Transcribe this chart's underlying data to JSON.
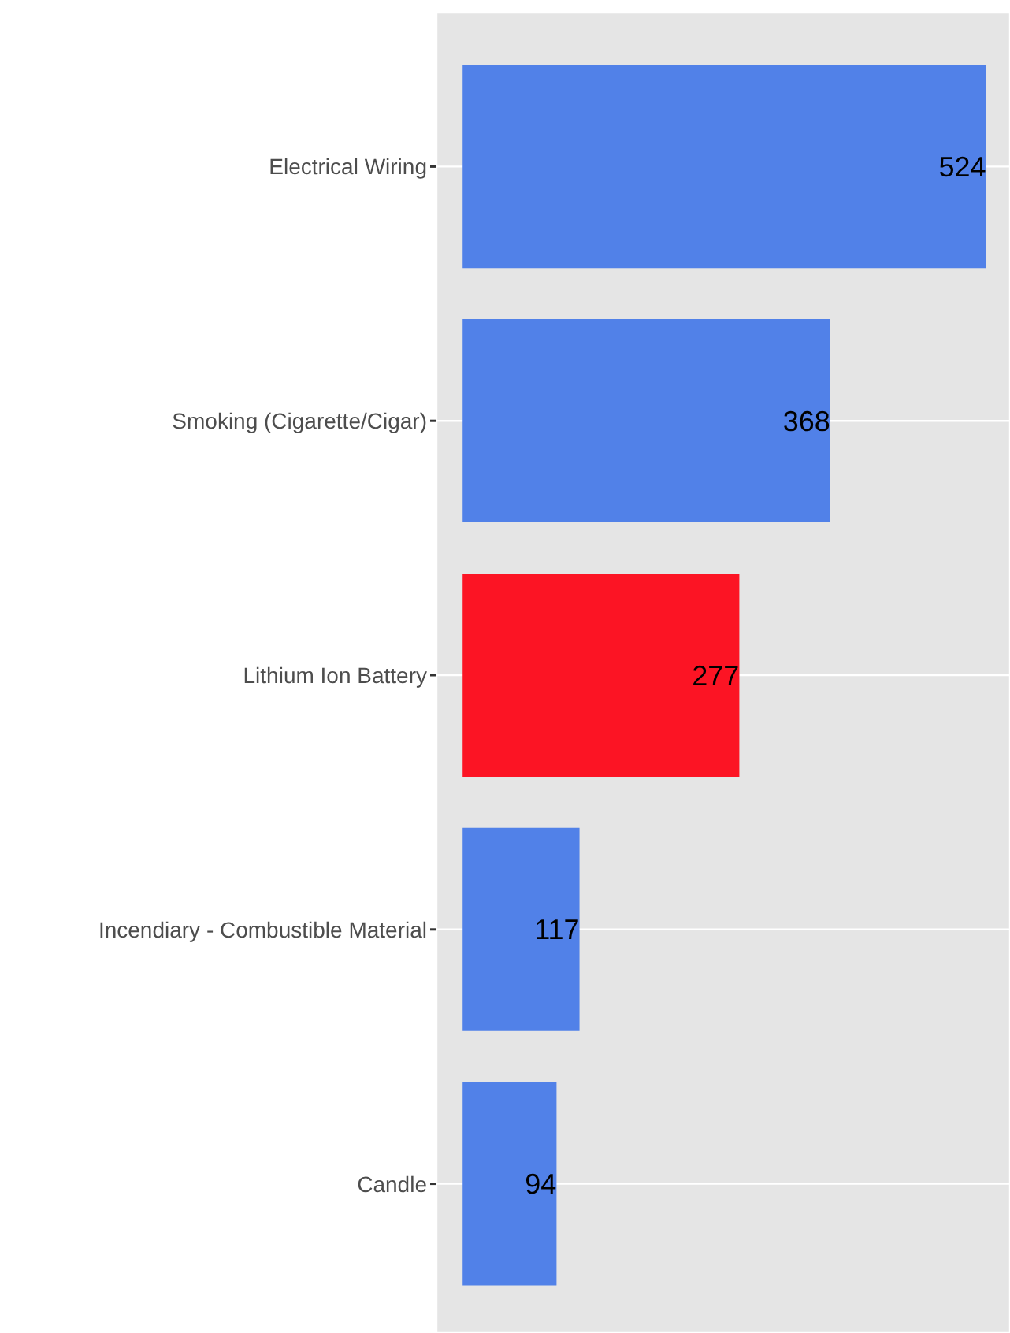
{
  "chart_data": {
    "type": "bar",
    "orientation": "horizontal",
    "categories": [
      "Electrical Wiring",
      "Smoking (Cigarette/Cigar)",
      "Lithium Ion Battery",
      "Incendiary - Combustible Material",
      "Candle"
    ],
    "values": [
      524,
      368,
      277,
      117,
      94
    ],
    "colors": [
      "#5181e8",
      "#5181e8",
      "#fc1424",
      "#5181e8",
      "#5181e8"
    ],
    "xlim": [
      -26.2,
      548
    ],
    "grid": true,
    "tick_labels": "y",
    "data_labels": true
  }
}
